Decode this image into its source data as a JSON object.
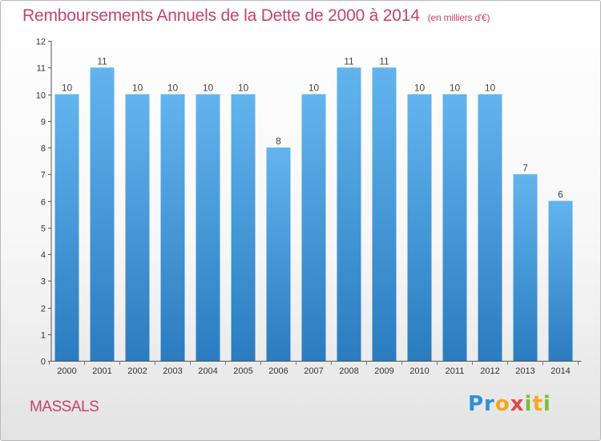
{
  "header": {
    "title": "Remboursements Annuels de la Dette de 2000 à 2014",
    "unit": "(en milliers d'€)"
  },
  "footer": {
    "town": "MASSALS",
    "logo": "Proxiti"
  },
  "colors": {
    "title": "#c8416e",
    "bar_top": "#63b4ee",
    "bar_bottom": "#2a7cc0"
  },
  "chart_data": {
    "type": "bar",
    "categories": [
      "2000",
      "2001",
      "2002",
      "2003",
      "2004",
      "2005",
      "2006",
      "2007",
      "2008",
      "2009",
      "2010",
      "2011",
      "2012",
      "2013",
      "2014"
    ],
    "values": [
      10,
      11,
      10,
      10,
      10,
      10,
      8,
      10,
      11,
      11,
      10,
      10,
      10,
      7,
      6
    ],
    "title": "Remboursements Annuels de la Dette de 2000 à 2014",
    "xlabel": "",
    "ylabel": "",
    "ylim": [
      0,
      12
    ],
    "yticks": [
      0,
      1,
      2,
      3,
      4,
      5,
      6,
      7,
      8,
      9,
      10,
      11,
      12
    ],
    "grid": false,
    "legend": "none"
  }
}
